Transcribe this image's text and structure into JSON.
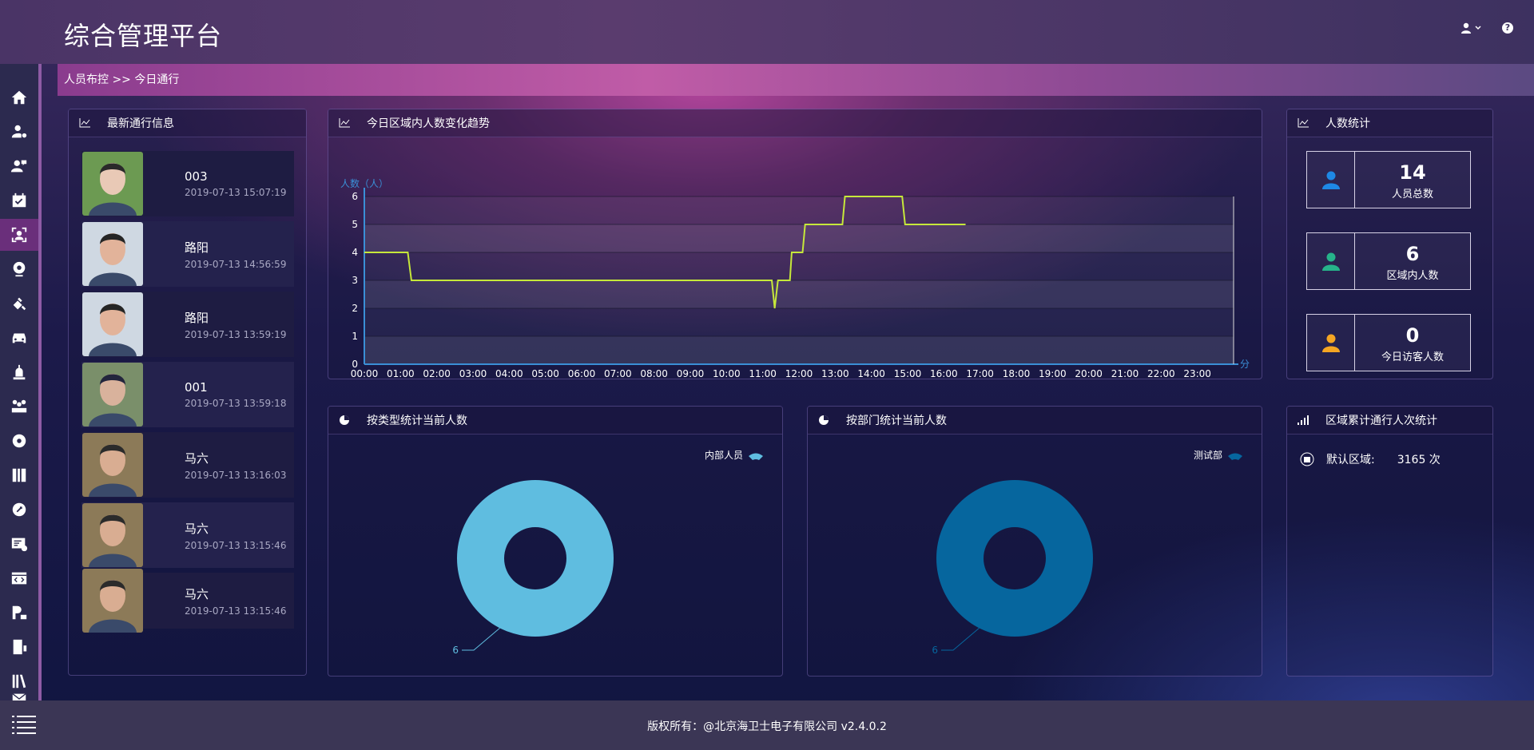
{
  "header": {
    "title": "综合管理平台"
  },
  "breadcrumb": "人员布控 >> 今日通行",
  "sidebar": {
    "items": [
      "home-icon",
      "user-settings-icon",
      "user-chat-icon",
      "calendar-check-icon",
      "face-recognition-icon",
      "camera-icon",
      "satellite-icon",
      "car-icon",
      "alarm-icon",
      "group-icon",
      "shield-gear-icon",
      "wrench-icon",
      "id-card-gear-icon",
      "code-window-icon",
      "parking-icon",
      "door-icon",
      "books-icon",
      "mail-icon"
    ],
    "active_index": 4
  },
  "latest_passage": {
    "title": "最新通行信息",
    "items": [
      {
        "name": "003",
        "time": "2019-07-13 15:07:19"
      },
      {
        "name": "路阳",
        "time": "2019-07-13 14:56:59"
      },
      {
        "name": "路阳",
        "time": "2019-07-13 13:59:19"
      },
      {
        "name": "001",
        "time": "2019-07-13 13:59:18"
      },
      {
        "name": "马六",
        "time": "2019-07-13 13:16:03"
      },
      {
        "name": "马六",
        "time": "2019-07-13 13:15:46"
      },
      {
        "name": "马六",
        "time": "2019-07-13 13:15:46"
      }
    ]
  },
  "trend": {
    "title": "今日区域内人数变化趋势"
  },
  "people_stats": {
    "title": "人数统计",
    "cards": [
      {
        "value": "14",
        "label": "人员总数",
        "color": "#1e88e5"
      },
      {
        "value": "6",
        "label": "区域内人数",
        "color": "#26b38a"
      },
      {
        "value": "0",
        "label": "今日访客人数",
        "color": "#f5a623"
      }
    ]
  },
  "by_type": {
    "title": "按类型统计当前人数"
  },
  "by_dept": {
    "title": "按部门统计当前人数"
  },
  "zone_stats": {
    "title": "区域累计通行人次统计",
    "rows": [
      {
        "label": "默认区域:",
        "value": "3165 次"
      }
    ]
  },
  "footer": {
    "copyright": "版权所有：@北京海卫士电子有限公司 v2.4.0.2"
  },
  "chart_data": [
    {
      "type": "line",
      "ylabel": "人数（人）",
      "xlabel": "分",
      "ylim": [
        0,
        6
      ],
      "yticks": [
        0,
        1,
        2,
        3,
        4,
        5,
        6
      ],
      "xticks": [
        "00:00",
        "01:00",
        "02:00",
        "03:00",
        "04:00",
        "05:00",
        "06:00",
        "07:00",
        "08:00",
        "09:00",
        "10:00",
        "11:00",
        "12:00",
        "13:00",
        "14:00",
        "15:00",
        "16:00",
        "17:00",
        "18:00",
        "19:00",
        "20:00",
        "21:00",
        "22:00",
        "23:00"
      ],
      "grid": true,
      "line_color": "#c6e83a",
      "points": [
        [
          0.0,
          4
        ],
        [
          1.2,
          4
        ],
        [
          1.3,
          3
        ],
        [
          11.25,
          3
        ],
        [
          11.33,
          2
        ],
        [
          11.42,
          3
        ],
        [
          11.75,
          3
        ],
        [
          11.8,
          4
        ],
        [
          12.1,
          4
        ],
        [
          12.17,
          5
        ],
        [
          13.2,
          5
        ],
        [
          13.27,
          6
        ],
        [
          14.85,
          6
        ],
        [
          14.93,
          5
        ],
        [
          16.6,
          5
        ]
      ]
    },
    {
      "type": "pie",
      "donut": true,
      "legend": "top-right",
      "slices": [
        {
          "label": "内部人员",
          "value": 6,
          "color": "#5fbde0"
        }
      ]
    },
    {
      "type": "pie",
      "donut": true,
      "legend": "top-right",
      "slices": [
        {
          "label": "测试部",
          "value": 6,
          "color": "#06669e"
        }
      ]
    }
  ]
}
